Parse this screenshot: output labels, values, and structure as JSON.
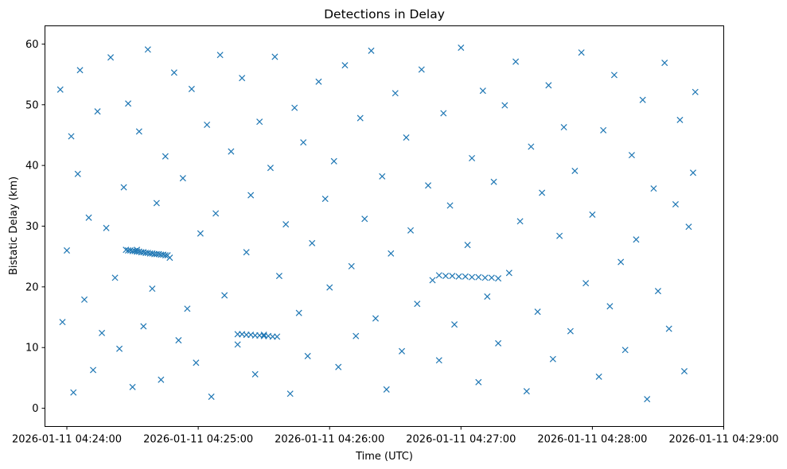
{
  "chart_data": {
    "type": "scatter",
    "title": "Detections in Delay",
    "xlabel": "Time (UTC)",
    "ylabel": "Bistatic Delay (km)",
    "x_ticks": [
      "2026-01-11 04:24:00",
      "2026-01-11 04:25:00",
      "2026-01-11 04:26:00",
      "2026-01-11 04:27:00",
      "2026-01-11 04:28:00",
      "2026-01-11 04:29:00"
    ],
    "y_ticks": [
      "0",
      "10",
      "20",
      "30",
      "40",
      "50",
      "60"
    ],
    "xlim": [
      "2026-01-11 04:23:50",
      "2026-01-11 04:29:00"
    ],
    "ylim": [
      -3,
      63
    ],
    "marker": "x",
    "grid": false,
    "legend": "none",
    "colors": {
      "series": "#1f77b4",
      "axes": "#000000",
      "background": "#ffffff"
    },
    "series": [
      {
        "x": [
          "2026-01-11 04:23:57",
          "2026-01-11 04:23:58",
          "2026-01-11 04:24:00",
          "2026-01-11 04:24:02",
          "2026-01-11 04:24:03",
          "2026-01-11 04:24:05",
          "2026-01-11 04:24:06",
          "2026-01-11 04:24:08",
          "2026-01-11 04:24:10",
          "2026-01-11 04:24:12",
          "2026-01-11 04:24:14",
          "2026-01-11 04:24:16",
          "2026-01-11 04:24:18",
          "2026-01-11 04:24:20",
          "2026-01-11 04:24:22",
          "2026-01-11 04:24:24",
          "2026-01-11 04:24:26",
          "2026-01-11 04:24:28",
          "2026-01-11 04:24:30",
          "2026-01-11 04:24:32",
          "2026-01-11 04:24:33",
          "2026-01-11 04:24:35",
          "2026-01-11 04:24:37",
          "2026-01-11 04:24:39",
          "2026-01-11 04:24:41",
          "2026-01-11 04:24:43",
          "2026-01-11 04:24:45",
          "2026-01-11 04:24:47",
          "2026-01-11 04:24:49",
          "2026-01-11 04:24:51",
          "2026-01-11 04:24:53",
          "2026-01-11 04:24:55",
          "2026-01-11 04:24:57",
          "2026-01-11 04:24:59",
          "2026-01-11 04:25:01",
          "2026-01-11 04:25:04",
          "2026-01-11 04:25:06",
          "2026-01-11 04:25:08",
          "2026-01-11 04:25:10",
          "2026-01-11 04:25:12",
          "2026-01-11 04:25:15",
          "2026-01-11 04:25:18",
          "2026-01-11 04:25:20",
          "2026-01-11 04:25:22",
          "2026-01-11 04:25:24",
          "2026-01-11 04:25:26",
          "2026-01-11 04:25:28",
          "2026-01-11 04:25:30",
          "2026-01-11 04:25:33",
          "2026-01-11 04:25:35",
          "2026-01-11 04:25:37",
          "2026-01-11 04:25:40",
          "2026-01-11 04:25:42",
          "2026-01-11 04:25:44",
          "2026-01-11 04:25:46",
          "2026-01-11 04:25:48",
          "2026-01-11 04:25:50",
          "2026-01-11 04:25:52",
          "2026-01-11 04:25:55",
          "2026-01-11 04:25:58",
          "2026-01-11 04:26:00",
          "2026-01-11 04:26:02",
          "2026-01-11 04:26:04",
          "2026-01-11 04:26:07",
          "2026-01-11 04:26:10",
          "2026-01-11 04:26:12",
          "2026-01-11 04:26:14",
          "2026-01-11 04:26:16",
          "2026-01-11 04:26:19",
          "2026-01-11 04:26:21",
          "2026-01-11 04:26:24",
          "2026-01-11 04:26:26",
          "2026-01-11 04:26:28",
          "2026-01-11 04:26:30",
          "2026-01-11 04:26:33",
          "2026-01-11 04:26:35",
          "2026-01-11 04:26:37",
          "2026-01-11 04:26:40",
          "2026-01-11 04:26:42",
          "2026-01-11 04:26:45",
          "2026-01-11 04:26:47",
          "2026-01-11 04:26:50",
          "2026-01-11 04:26:52",
          "2026-01-11 04:26:55",
          "2026-01-11 04:26:57",
          "2026-01-11 04:27:00",
          "2026-01-11 04:27:03",
          "2026-01-11 04:27:05",
          "2026-01-11 04:27:08",
          "2026-01-11 04:27:10",
          "2026-01-11 04:27:12",
          "2026-01-11 04:27:15",
          "2026-01-11 04:27:17",
          "2026-01-11 04:27:20",
          "2026-01-11 04:27:22",
          "2026-01-11 04:27:25",
          "2026-01-11 04:27:27",
          "2026-01-11 04:27:30",
          "2026-01-11 04:27:32",
          "2026-01-11 04:27:35",
          "2026-01-11 04:27:37",
          "2026-01-11 04:27:40",
          "2026-01-11 04:27:42",
          "2026-01-11 04:27:45",
          "2026-01-11 04:27:47",
          "2026-01-11 04:27:50",
          "2026-01-11 04:27:52",
          "2026-01-11 04:27:55",
          "2026-01-11 04:27:57",
          "2026-01-11 04:28:00",
          "2026-01-11 04:28:03",
          "2026-01-11 04:28:05",
          "2026-01-11 04:28:08",
          "2026-01-11 04:28:10",
          "2026-01-11 04:28:13",
          "2026-01-11 04:28:15",
          "2026-01-11 04:28:18",
          "2026-01-11 04:28:20",
          "2026-01-11 04:28:23",
          "2026-01-11 04:28:25",
          "2026-01-11 04:28:28",
          "2026-01-11 04:28:30",
          "2026-01-11 04:28:33",
          "2026-01-11 04:28:35",
          "2026-01-11 04:28:38",
          "2026-01-11 04:28:40",
          "2026-01-11 04:28:42",
          "2026-01-11 04:28:44",
          "2026-01-11 04:28:46",
          "2026-01-11 04:28:47",
          "2026-01-11 04:24:27",
          "2026-01-11 04:24:28",
          "2026-01-11 04:24:29",
          "2026-01-11 04:24:30",
          "2026-01-11 04:24:31",
          "2026-01-11 04:24:32",
          "2026-01-11 04:24:33",
          "2026-01-11 04:24:34",
          "2026-01-11 04:24:35",
          "2026-01-11 04:24:36",
          "2026-01-11 04:24:37",
          "2026-01-11 04:24:38",
          "2026-01-11 04:24:39",
          "2026-01-11 04:24:40",
          "2026-01-11 04:24:41",
          "2026-01-11 04:24:42",
          "2026-01-11 04:24:43",
          "2026-01-11 04:24:44",
          "2026-01-11 04:24:45",
          "2026-01-11 04:24:46",
          "2026-01-11 04:25:18",
          "2026-01-11 04:25:20",
          "2026-01-11 04:25:22",
          "2026-01-11 04:25:24",
          "2026-01-11 04:25:26",
          "2026-01-11 04:25:28",
          "2026-01-11 04:25:30",
          "2026-01-11 04:25:32",
          "2026-01-11 04:25:34",
          "2026-01-11 04:25:36",
          "2026-01-11 04:26:50",
          "2026-01-11 04:26:53",
          "2026-01-11 04:26:56",
          "2026-01-11 04:26:59",
          "2026-01-11 04:27:02",
          "2026-01-11 04:27:05",
          "2026-01-11 04:27:08",
          "2026-01-11 04:27:11",
          "2026-01-11 04:27:14",
          "2026-01-11 04:27:17"
        ],
        "y": [
          52.5,
          14.2,
          26.0,
          44.8,
          2.6,
          38.6,
          55.7,
          17.9,
          31.4,
          6.3,
          48.9,
          12.4,
          29.7,
          57.8,
          21.5,
          9.8,
          36.4,
          50.2,
          3.5,
          26.1,
          45.6,
          13.5,
          59.1,
          19.7,
          33.8,
          4.7,
          41.5,
          24.8,
          55.3,
          11.2,
          37.9,
          16.4,
          52.6,
          7.5,
          28.8,
          46.7,
          1.9,
          32.1,
          58.2,
          18.6,
          42.3,
          10.5,
          54.4,
          25.7,
          35.1,
          5.6,
          47.2,
          12.1,
          39.6,
          57.9,
          21.8,
          30.3,
          2.4,
          49.5,
          15.7,
          43.8,
          8.6,
          27.2,
          53.8,
          34.5,
          19.9,
          40.7,
          6.8,
          56.5,
          23.4,
          11.9,
          47.8,
          31.2,
          58.9,
          14.8,
          38.2,
          3.1,
          25.5,
          51.9,
          9.4,
          44.6,
          29.3,
          17.2,
          55.8,
          36.7,
          21.1,
          7.9,
          48.6,
          33.4,
          13.8,
          59.4,
          26.9,
          41.2,
          4.3,
          52.3,
          18.4,
          37.3,
          10.7,
          49.9,
          22.3,
          57.1,
          30.8,
          2.8,
          43.1,
          15.9,
          35.5,
          53.2,
          8.1,
          28.4,
          46.3,
          12.7,
          39.1,
          58.6,
          20.6,
          31.9,
          5.2,
          45.8,
          16.8,
          54.9,
          24.1,
          9.6,
          41.7,
          27.8,
          50.8,
          1.5,
          36.2,
          19.3,
          56.9,
          13.1,
          33.6,
          47.5,
          6.1,
          29.9,
          38.8,
          52.1,
          26.1,
          26.0,
          26.0,
          25.9,
          25.9,
          25.8,
          25.8,
          25.7,
          25.7,
          25.6,
          25.6,
          25.5,
          25.5,
          25.4,
          25.4,
          25.4,
          25.3,
          25.3,
          25.2,
          25.2,
          12.2,
          12.2,
          12.1,
          12.1,
          12.0,
          12.0,
          11.9,
          11.9,
          11.8,
          11.8,
          21.9,
          21.8,
          21.8,
          21.7,
          21.7,
          21.6,
          21.6,
          21.5,
          21.5,
          21.4
        ]
      }
    ]
  }
}
